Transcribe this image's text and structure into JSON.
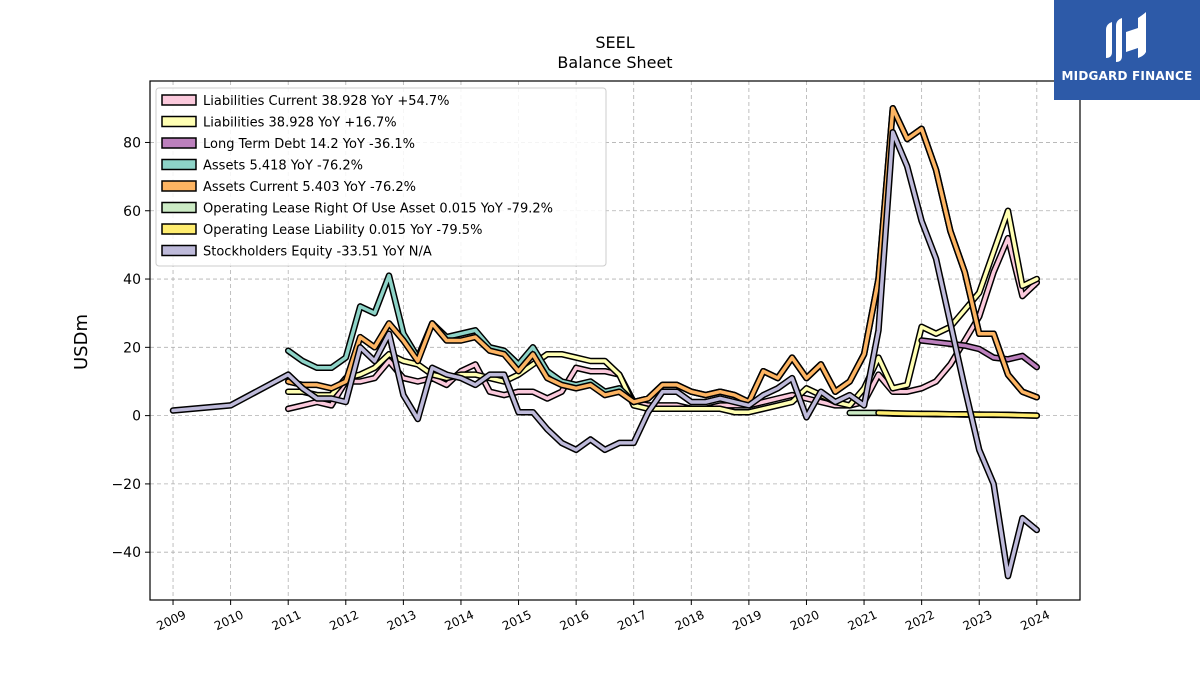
{
  "chart_data": {
    "type": "line",
    "title": "SEEL",
    "subtitle": "Balance  Sheet",
    "ylabel": "USDm",
    "xlabel": "",
    "xlim": [
      2008.6,
      2024.75
    ],
    "ylim": [
      -54,
      98
    ],
    "x_ticks": [
      2009,
      2010,
      2011,
      2012,
      2013,
      2014,
      2015,
      2016,
      2017,
      2018,
      2019,
      2020,
      2021,
      2022,
      2023,
      2024
    ],
    "y_ticks": [
      -40,
      -20,
      0,
      20,
      40,
      60,
      80
    ],
    "y_tick_labels": [
      "−40",
      "−20",
      "0",
      "20",
      "40",
      "60",
      "80"
    ],
    "grid": true,
    "legend_position": "top-left",
    "series": [
      {
        "name": "Liabilities Current  38.928 YoY +54.7%",
        "color": "#fbc9dc",
        "x": [
          2011.0,
          2011.25,
          2011.5,
          2011.75,
          2012.0,
          2012.25,
          2012.5,
          2012.75,
          2013.0,
          2013.25,
          2013.5,
          2013.75,
          2014.0,
          2014.25,
          2014.5,
          2014.75,
          2015.0,
          2015.25,
          2015.5,
          2015.75,
          2016.0,
          2016.25,
          2016.5,
          2016.75,
          2017.0,
          2017.25,
          2017.5,
          2017.75,
          2018.0,
          2018.25,
          2018.5,
          2018.75,
          2019.0,
          2019.25,
          2019.5,
          2019.75,
          2020.0,
          2020.25,
          2020.5,
          2020.75,
          2021.0,
          2021.25,
          2021.5,
          2021.75,
          2022.0,
          2022.25,
          2022.5,
          2022.75,
          2023.0,
          2023.25,
          2023.5,
          2023.75,
          2024.0
        ],
        "y": [
          2,
          3,
          4,
          3,
          10,
          10,
          11,
          16,
          11,
          10,
          11,
          9,
          13,
          15,
          7,
          6,
          7,
          7,
          5,
          7,
          14,
          13,
          13,
          12,
          4,
          3,
          3,
          3,
          2,
          2,
          3,
          3,
          3,
          4,
          5,
          6,
          5,
          4,
          3,
          3,
          4,
          12,
          7,
          7,
          8,
          10,
          15,
          22,
          29,
          42,
          52,
          35,
          39
        ]
      },
      {
        "name": "Liabilities  38.928 YoY +16.7%",
        "color": "#ffffb3",
        "x": [
          2011.0,
          2011.25,
          2011.5,
          2011.75,
          2012.0,
          2012.25,
          2012.5,
          2012.75,
          2013.0,
          2013.25,
          2013.5,
          2013.75,
          2014.0,
          2014.25,
          2014.5,
          2014.75,
          2015.0,
          2015.25,
          2015.5,
          2015.75,
          2016.0,
          2016.25,
          2016.5,
          2016.75,
          2017.0,
          2017.25,
          2017.5,
          2017.75,
          2018.0,
          2018.25,
          2018.5,
          2018.75,
          2019.0,
          2019.25,
          2019.5,
          2019.75,
          2020.0,
          2020.25,
          2020.5,
          2020.75,
          2021.0,
          2021.25,
          2021.5,
          2021.75,
          2022.0,
          2022.25,
          2022.5,
          2022.75,
          2023.0,
          2023.25,
          2023.5,
          2023.75,
          2024.0
        ],
        "y": [
          7,
          7,
          6,
          6,
          11,
          12,
          14,
          18,
          16,
          15,
          12,
          11,
          12,
          12,
          11,
          10,
          12,
          15,
          18,
          18,
          17,
          16,
          16,
          12,
          3,
          2,
          2,
          2,
          2,
          2,
          2,
          1,
          1,
          2,
          3,
          4,
          8,
          6,
          4,
          3,
          8,
          17,
          8,
          9,
          26,
          24,
          26,
          31,
          36,
          48,
          60,
          38,
          40
        ]
      },
      {
        "name": "Long Term Debt  14.2 YoY -36.1%",
        "color": "#bc80bd",
        "x": [
          2022.0,
          2022.25,
          2022.5,
          2022.75,
          2023.0,
          2023.25,
          2023.5,
          2023.75,
          2024.0
        ],
        "y": [
          22,
          21.5,
          21,
          20.5,
          19.5,
          17,
          16.5,
          17.5,
          14.2
        ]
      },
      {
        "name": "Assets  5.418 YoY -76.2%",
        "color": "#8dd3c7",
        "x": [
          2011.0,
          2011.25,
          2011.5,
          2011.75,
          2012.0,
          2012.25,
          2012.5,
          2012.75,
          2013.0,
          2013.25,
          2013.5,
          2013.75,
          2014.0,
          2014.25,
          2014.5,
          2014.75,
          2015.0,
          2015.25,
          2015.5,
          2015.75,
          2016.0,
          2016.25,
          2016.5,
          2016.75,
          2017.0,
          2017.25,
          2017.5,
          2017.75,
          2018.0,
          2018.25,
          2018.5,
          2018.75,
          2019.0,
          2019.25,
          2019.5,
          2019.75,
          2020.0,
          2020.25,
          2020.5,
          2020.75,
          2021.0,
          2021.25,
          2021.5,
          2021.75,
          2022.0,
          2022.25,
          2022.5,
          2022.75,
          2023.0,
          2023.25,
          2023.5,
          2023.75,
          2024.0
        ],
        "y": [
          19,
          16,
          14,
          14,
          17,
          32,
          30,
          41,
          24,
          17,
          27,
          23,
          24,
          25,
          20,
          19,
          15,
          20,
          13,
          10,
          9,
          10,
          7,
          8,
          4,
          5,
          9,
          9,
          7,
          6,
          7,
          6,
          4,
          13,
          11,
          17,
          11,
          15,
          7,
          10,
          18,
          40,
          90,
          81,
          84,
          72,
          54,
          42,
          24,
          24,
          12,
          7,
          5.4
        ]
      },
      {
        "name": "Assets Current  5.403 YoY -76.2%",
        "color": "#fdb462",
        "x": [
          2011.0,
          2011.25,
          2011.5,
          2011.75,
          2012.0,
          2012.25,
          2012.5,
          2012.75,
          2013.0,
          2013.25,
          2013.5,
          2013.75,
          2014.0,
          2014.25,
          2014.5,
          2014.75,
          2015.0,
          2015.25,
          2015.5,
          2015.75,
          2016.0,
          2016.25,
          2016.5,
          2016.75,
          2017.0,
          2017.25,
          2017.5,
          2017.75,
          2018.0,
          2018.25,
          2018.5,
          2018.75,
          2019.0,
          2019.25,
          2019.5,
          2019.75,
          2020.0,
          2020.25,
          2020.5,
          2020.75,
          2021.0,
          2021.25,
          2021.5,
          2021.75,
          2022.0,
          2022.25,
          2022.5,
          2022.75,
          2023.0,
          2023.25,
          2023.5,
          2023.75,
          2024.0
        ],
        "y": [
          10,
          9,
          9,
          8,
          10,
          23,
          20,
          27,
          22,
          16,
          27,
          22,
          22,
          23,
          19,
          18,
          13,
          18,
          11,
          9,
          8,
          9,
          6,
          7,
          4,
          5,
          9,
          9,
          7,
          6,
          7,
          6,
          4,
          13,
          11,
          17,
          11,
          15,
          7,
          10,
          18,
          40,
          90,
          81,
          84,
          72,
          54,
          42,
          24,
          24,
          12,
          7,
          5.4
        ]
      },
      {
        "name": "Operating Lease Right Of Use Asset  0.015 YoY -79.2%",
        "color": "#ccebc5",
        "x": [
          2020.75,
          2021.0,
          2021.25,
          2021.5,
          2021.75,
          2022.0,
          2022.25,
          2022.5,
          2022.75,
          2023.0,
          2023.25,
          2023.5,
          2023.75,
          2024.0
        ],
        "y": [
          0.8,
          0.8,
          0.8,
          0.6,
          0.5,
          0.5,
          0.4,
          0.4,
          0.3,
          0.3,
          0.2,
          0.2,
          0.1,
          0.015
        ]
      },
      {
        "name": "Operating Lease Liability  0.015 YoY -79.5%",
        "color": "#ffed6f",
        "x": [
          2021.25,
          2021.5,
          2021.75,
          2022.0,
          2022.25,
          2022.5,
          2022.75,
          2023.0,
          2023.25,
          2023.5,
          2023.75,
          2024.0
        ],
        "y": [
          0.8,
          0.7,
          0.6,
          0.5,
          0.5,
          0.4,
          0.4,
          0.3,
          0.3,
          0.2,
          0.1,
          0.015
        ]
      },
      {
        "name": "Stockholders Equity  -33.51 YoY N/A",
        "color": "#bebada",
        "x": [
          2009.0,
          2010.0,
          2011.0,
          2011.25,
          2011.5,
          2011.75,
          2012.0,
          2012.25,
          2012.5,
          2012.75,
          2013.0,
          2013.25,
          2013.5,
          2013.75,
          2014.0,
          2014.25,
          2014.5,
          2014.75,
          2015.0,
          2015.25,
          2015.5,
          2015.75,
          2016.0,
          2016.25,
          2016.5,
          2016.75,
          2017.0,
          2017.25,
          2017.5,
          2017.75,
          2018.0,
          2018.25,
          2018.5,
          2018.75,
          2019.0,
          2019.25,
          2019.5,
          2019.75,
          2020.0,
          2020.25,
          2020.5,
          2020.75,
          2021.0,
          2021.25,
          2021.5,
          2021.75,
          2022.0,
          2022.25,
          2022.5,
          2022.75,
          2023.0,
          2023.25,
          2023.5,
          2023.75,
          2024.0
        ],
        "y": [
          1.5,
          3,
          12,
          8,
          5,
          5,
          4,
          20,
          16,
          24,
          6,
          -1,
          14,
          12,
          11,
          9,
          12,
          12,
          1,
          1,
          -4,
          -8,
          -10,
          -7,
          -10,
          -8,
          -8,
          1,
          7,
          7,
          4,
          4,
          5,
          4,
          3,
          6,
          8,
          11,
          -0.5,
          7,
          4,
          6,
          3,
          25,
          83,
          73,
          57,
          46,
          27,
          8,
          -10,
          -20,
          -47,
          -30,
          -33.5
        ]
      }
    ]
  },
  "branding": {
    "logo_text": "MIDGARD FINANCE",
    "logo_icon": "midgard-logo-icon",
    "logo_bg": "#2d5aa8"
  }
}
